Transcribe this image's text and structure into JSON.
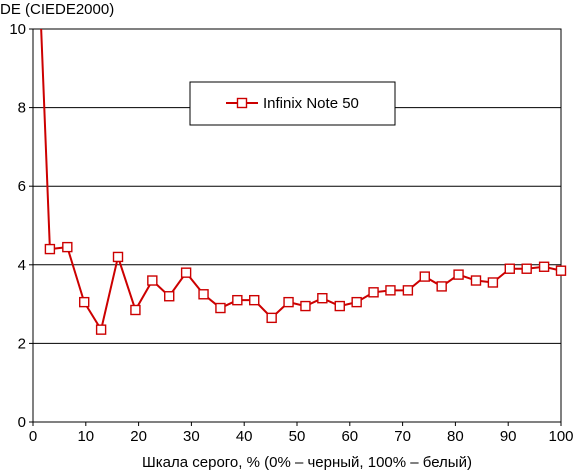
{
  "chart_data": {
    "type": "line",
    "title": "",
    "ylabel": "DE (CIEDE2000)",
    "xlabel": "Шкала серого, % (0% – черный, 100% – белый)",
    "xlim": [
      0,
      100
    ],
    "ylim": [
      0,
      10
    ],
    "xticks": [
      0,
      10,
      20,
      30,
      40,
      50,
      60,
      70,
      80,
      90,
      100
    ],
    "yticks": [
      0,
      2,
      4,
      6,
      8,
      10
    ],
    "grid": "horizontal",
    "legend_position": "top-center",
    "series": [
      {
        "name": "Infinix Note 50",
        "color": "#cc0000",
        "marker": "open-square",
        "x": [
          3.2,
          6.5,
          9.7,
          12.9,
          16.1,
          19.4,
          22.6,
          25.8,
          29.0,
          32.3,
          35.5,
          38.7,
          41.9,
          45.2,
          48.4,
          51.6,
          54.8,
          58.1,
          61.3,
          64.5,
          67.7,
          71.0,
          74.2,
          77.4,
          80.6,
          83.9,
          87.1,
          90.3,
          93.5,
          96.8,
          100
        ],
        "y": [
          4.4,
          4.45,
          3.05,
          2.35,
          4.2,
          2.85,
          3.6,
          3.2,
          3.8,
          3.25,
          2.9,
          3.1,
          3.1,
          2.65,
          3.05,
          2.95,
          3.15,
          2.95,
          3.05,
          3.3,
          3.35,
          3.35,
          3.7,
          3.45,
          3.75,
          3.6,
          3.55,
          3.9,
          3.9,
          3.95,
          3.85
        ]
      }
    ],
    "offscale_start": {
      "x": 1.5,
      "y": 10
    }
  }
}
